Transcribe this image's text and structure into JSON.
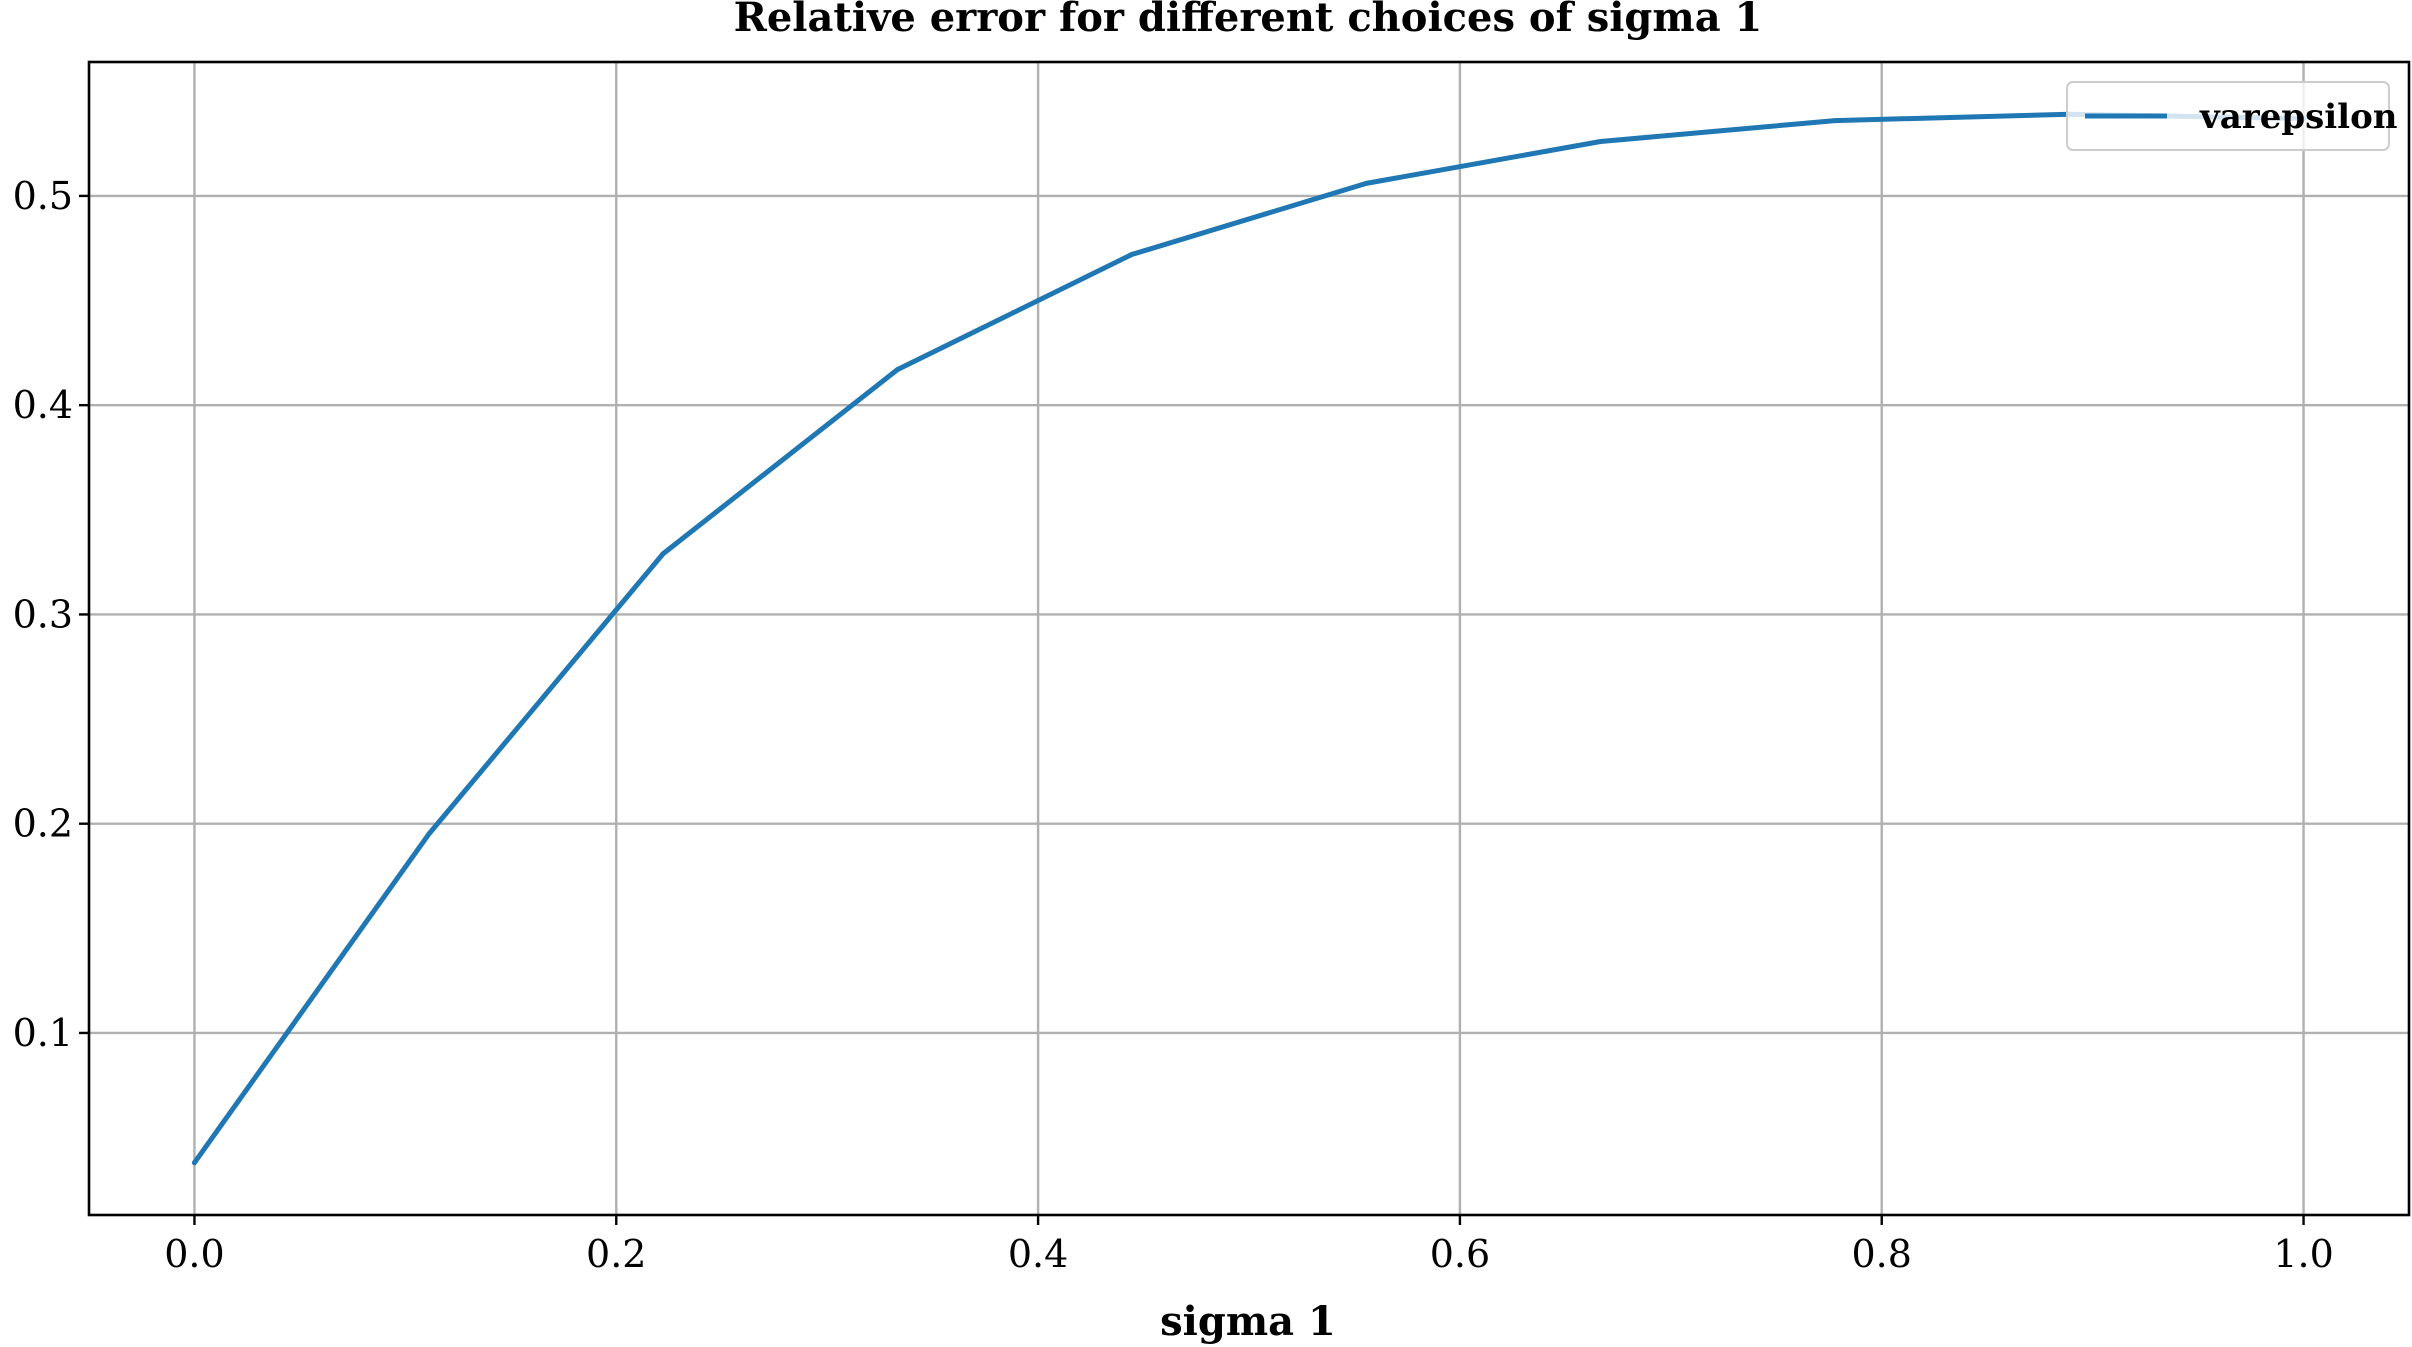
{
  "chart_data": {
    "type": "line",
    "title": "Relative error for different choices of sigma 1",
    "xlabel": "sigma 1",
    "ylabel": "",
    "xlim": [
      -0.05,
      1.05
    ],
    "ylim": [
      0.013,
      0.564
    ],
    "grid": true,
    "legend_position": "top-right",
    "x_ticks": [
      0.0,
      0.2,
      0.4,
      0.6,
      0.8,
      1.0
    ],
    "x_tick_labels": [
      "0.0",
      "0.2",
      "0.4",
      "0.6",
      "0.8",
      "1.0"
    ],
    "y_ticks": [
      0.1,
      0.2,
      0.3,
      0.4,
      0.5
    ],
    "y_tick_labels": [
      "0.1",
      "0.2",
      "0.3",
      "0.4",
      "0.5"
    ],
    "series": [
      {
        "name": "varepsilon",
        "color": "#1f77b4",
        "x": [
          0.0,
          0.1111,
          0.2222,
          0.3333,
          0.4444,
          0.5556,
          0.6667,
          0.7778,
          0.8889,
          1.0
        ],
        "y": [
          0.038,
          0.195,
          0.329,
          0.417,
          0.472,
          0.506,
          0.526,
          0.536,
          0.539,
          0.537
        ]
      }
    ]
  }
}
